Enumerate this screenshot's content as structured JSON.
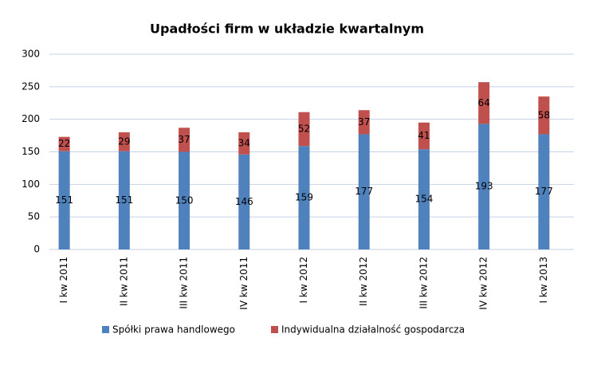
{
  "chart_data": {
    "type": "stacked_bar",
    "title": "Upadłości firm w układzie kwartalnym",
    "categories": [
      "I kw 2011",
      "II kw 2011",
      "III kw 2011",
      "IV kw 2011",
      "I kw 2012",
      "II kw 2012",
      "III kw 2012",
      "IV kw 2012",
      "I kw 2013"
    ],
    "series": [
      {
        "name": "Spółki prawa handlowego",
        "color": "#4f81bd",
        "values": [
          151,
          151,
          150,
          146,
          159,
          177,
          154,
          193,
          177
        ]
      },
      {
        "name": "Indywidualna działalność gospodarcza",
        "color": "#c0504d",
        "values": [
          22,
          29,
          37,
          34,
          52,
          37,
          41,
          64,
          58
        ]
      }
    ],
    "ylim": [
      0,
      300
    ],
    "yticks": [
      0,
      50,
      100,
      150,
      200,
      250,
      300
    ],
    "grid": true,
    "legend": "bottom"
  }
}
